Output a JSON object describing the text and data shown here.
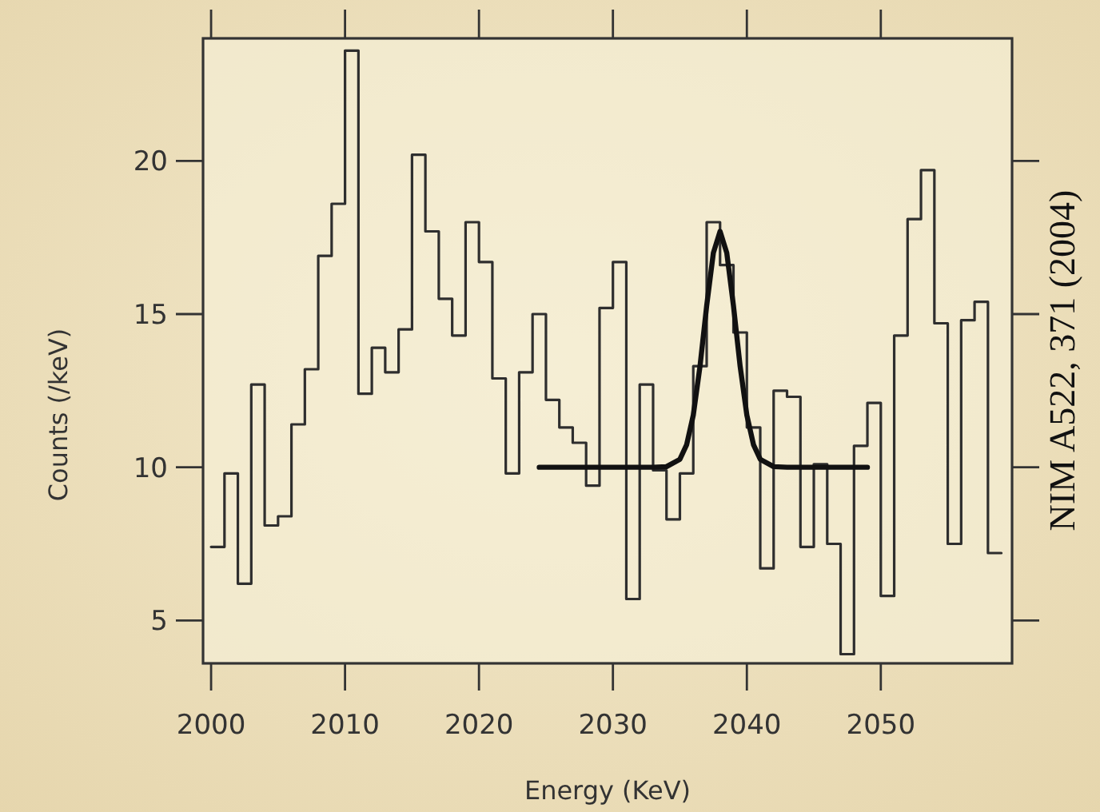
{
  "chart_data": {
    "type": "step",
    "xlabel": "Energy (KeV)",
    "ylabel": "Counts (/keV)",
    "xlim": [
      1999.4,
      2059.8
    ],
    "xticks": [
      2000,
      2010,
      2020,
      2030,
      2040,
      2050
    ],
    "ylim": [
      3.6,
      24
    ],
    "yticks": [
      5,
      10,
      15,
      20
    ],
    "grid": false,
    "annotations": [
      "NIM A522, 371 (2004)"
    ],
    "series": [
      {
        "color": "#2e2e2e",
        "x": [
          2000,
          2001,
          2002,
          2003,
          2004,
          2005,
          2006,
          2007,
          2008,
          2009,
          2010,
          2011,
          2012,
          2013,
          2014,
          2015,
          2016,
          2017,
          2018,
          2019,
          2020,
          2021,
          2022,
          2023,
          2024,
          2025,
          2026,
          2027,
          2028,
          2029,
          2030,
          2031,
          2032,
          2033,
          2034,
          2035,
          2036,
          2037,
          2038,
          2039,
          2040,
          2041,
          2042,
          2043,
          2044,
          2045,
          2046,
          2047,
          2048,
          2049,
          2050,
          2051,
          2052,
          2053,
          2054,
          2055,
          2056,
          2057,
          2058,
          2059
        ],
        "values": [
          7.4,
          9.8,
          6.2,
          12.7,
          8.1,
          8.4,
          11.4,
          13.2,
          16.9,
          18.6,
          23.6,
          12.4,
          13.9,
          13.1,
          14.5,
          20.2,
          17.7,
          15.5,
          14.3,
          18.0,
          16.7,
          12.9,
          9.8,
          13.1,
          15.0,
          12.2,
          11.3,
          10.8,
          9.4,
          15.2,
          16.7,
          5.7,
          12.7,
          9.9,
          8.3,
          9.8,
          13.3,
          18.0,
          16.6,
          14.4,
          11.3,
          6.7,
          12.5,
          12.3,
          7.4,
          10.1,
          7.5,
          3.9,
          10.7,
          12.1,
          5.8,
          14.3,
          18.1,
          19.7,
          14.7,
          7.5,
          14.8,
          15.4,
          7.2,
          7.2
        ]
      },
      {
        "type": "line",
        "color": "#111111",
        "x": [
          2024.5,
          2033,
          2034,
          2035,
          2035.5,
          2036,
          2036.5,
          2037,
          2037.5,
          2038,
          2038.5,
          2039,
          2039.5,
          2040,
          2040.5,
          2041,
          2042,
          2043,
          2049
        ],
        "values": [
          10,
          10,
          10.02,
          10.26,
          10.73,
          11.7,
          13.29,
          15.27,
          17.0,
          17.7,
          17.0,
          15.27,
          13.29,
          11.7,
          10.73,
          10.26,
          10.02,
          10,
          10
        ]
      }
    ]
  }
}
